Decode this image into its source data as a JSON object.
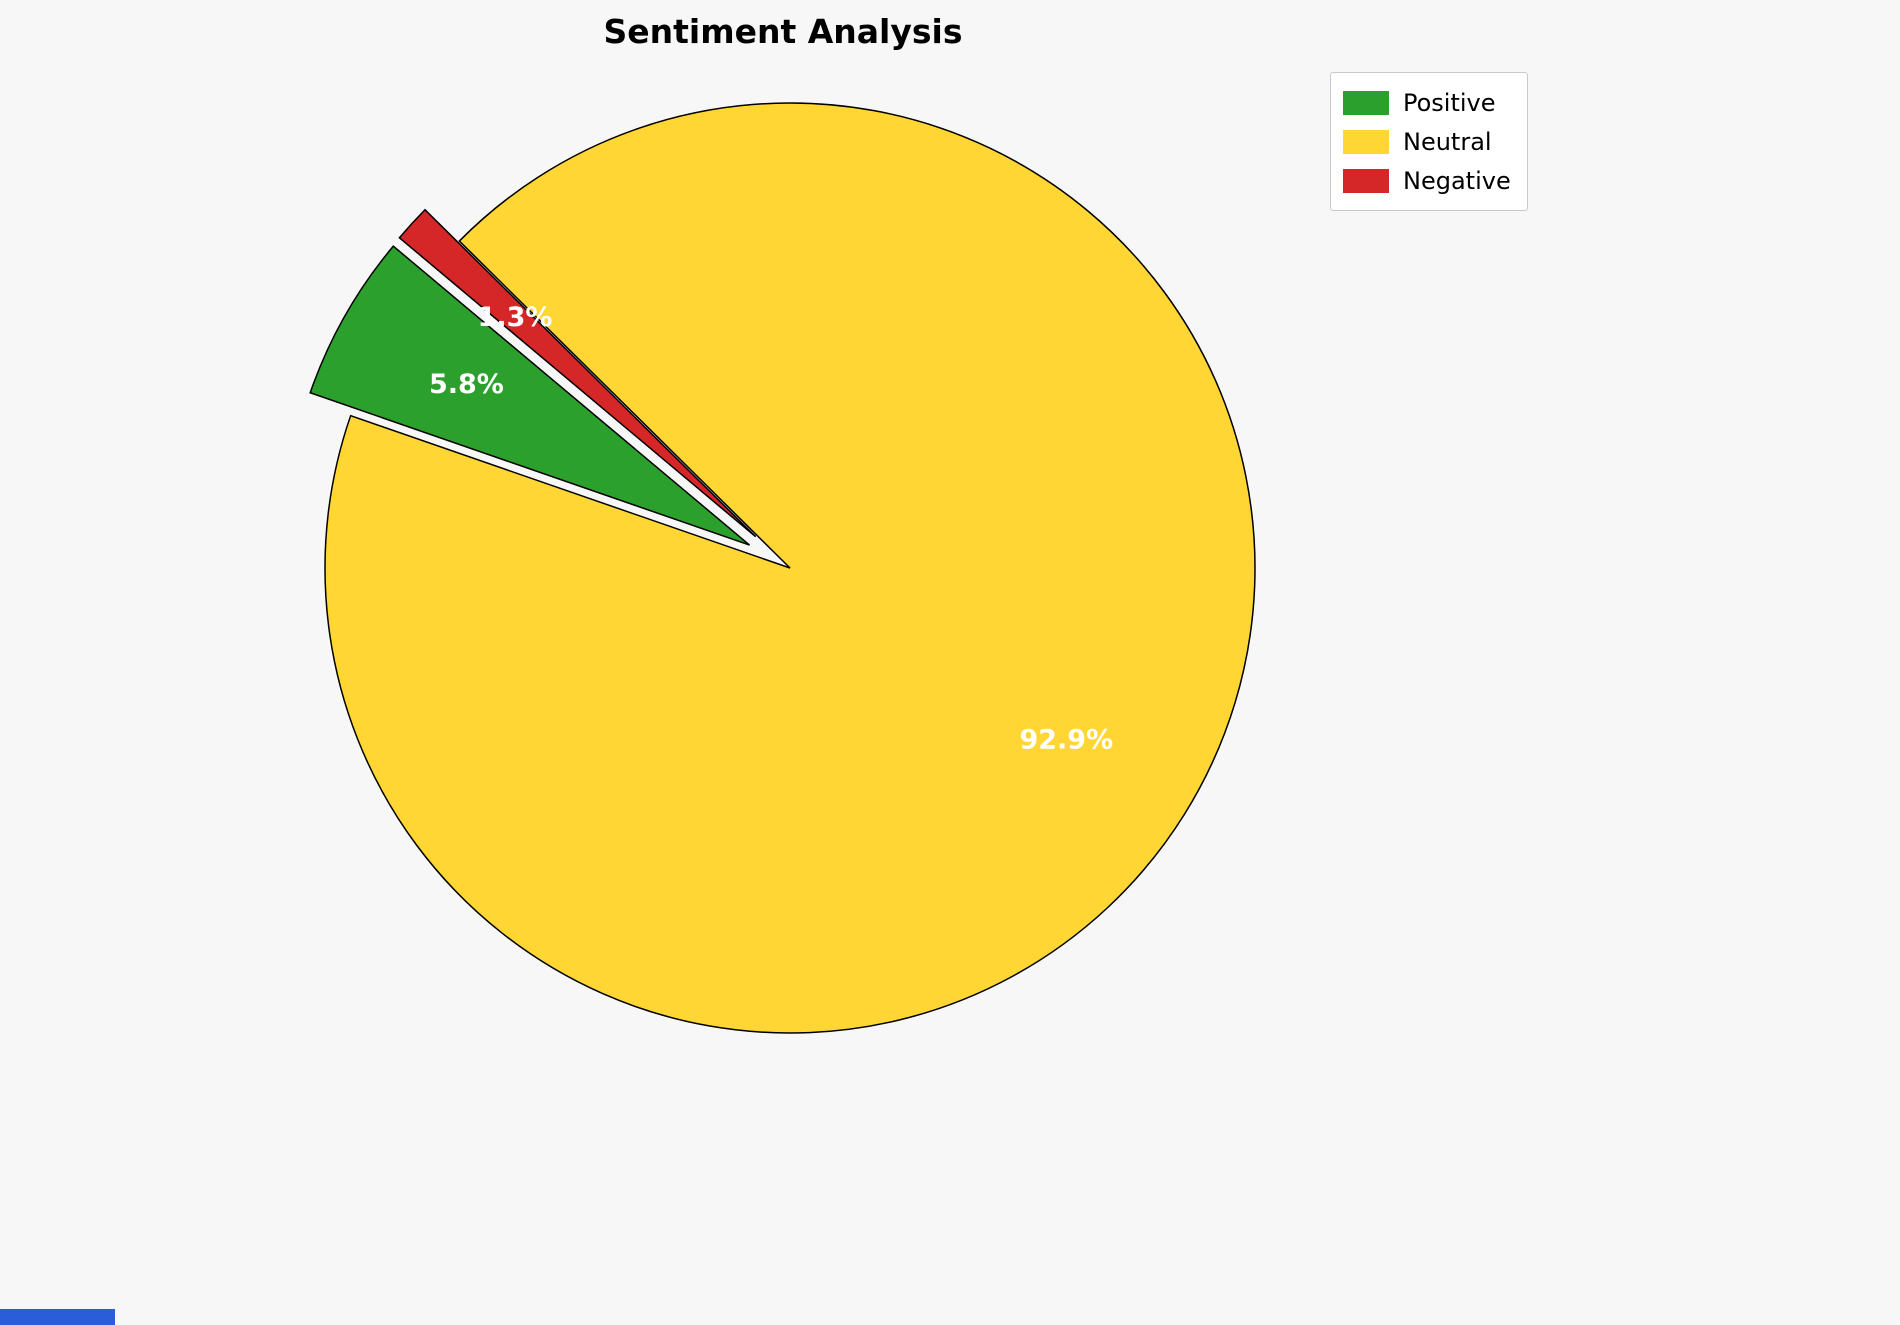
{
  "page": {
    "background": "#f7f7f7",
    "bottom_strip_color": "#2b5cd9"
  },
  "chart_data": {
    "type": "pie",
    "title": "Sentiment Analysis",
    "slices": [
      {
        "label": "Positive",
        "value": 5.8,
        "pct_label": "5.8%",
        "color": "#2ca02c",
        "explode": 0.1
      },
      {
        "label": "Neutral",
        "value": 92.9,
        "pct_label": "92.9%",
        "color": "#ffd633",
        "explode": 0.0
      },
      {
        "label": "Negative",
        "value": 1.3,
        "pct_label": "1.3%",
        "color": "#d62728",
        "explode": 0.1
      }
    ],
    "start_angle": 140,
    "direction": "counterclockwise",
    "pct_distance": 0.7,
    "edge_color": "#000000",
    "label_color": "#ffffff",
    "legend_position": "upper right",
    "legend_entries": [
      "Positive",
      "Neutral",
      "Negative"
    ]
  }
}
